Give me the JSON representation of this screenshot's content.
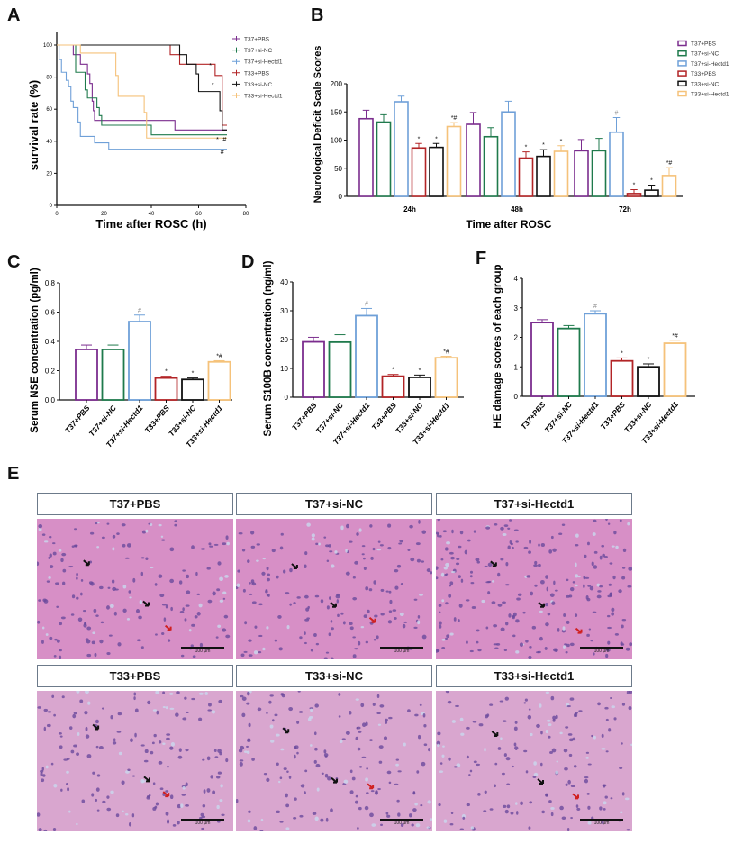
{
  "panel_labels": {
    "a": "A",
    "b": "B",
    "c": "C",
    "d": "D",
    "e": "E",
    "f": "F"
  },
  "groups": [
    "T37+PBS",
    "T37+si-NC",
    "T37+si-Hectd1",
    "T33+PBS",
    "T33+si-NC",
    "T33+si-Hectd1"
  ],
  "colors": [
    "#7b2d8e",
    "#1f7a4c",
    "#6fa0d8",
    "#b22426",
    "#111111",
    "#f5c27a"
  ],
  "chart_data": [
    {
      "id": "A",
      "type": "line",
      "step": true,
      "xlabel": "Time after ROSC (h)",
      "ylabel": "survival rate (%)",
      "xlim": [
        0,
        80
      ],
      "ylim": [
        0,
        100
      ],
      "xticks": [
        0,
        20,
        40,
        60,
        80
      ],
      "yticks": [
        0,
        20,
        40,
        60,
        80,
        100
      ],
      "legend": "top-right",
      "series": [
        {
          "name": "T37+PBS",
          "points": [
            [
              0,
              100
            ],
            [
              7,
              94
            ],
            [
              10,
              88
            ],
            [
              13,
              82
            ],
            [
              14,
              76
            ],
            [
              15,
              65
            ],
            [
              15.5,
              59
            ],
            [
              16,
              53
            ],
            [
              50,
              47
            ],
            [
              72,
              47
            ]
          ]
        },
        {
          "name": "T37+si-NC",
          "points": [
            [
              0,
              100
            ],
            [
              8,
              83
            ],
            [
              12,
              72
            ],
            [
              13,
              67
            ],
            [
              17,
              61
            ],
            [
              18,
              56
            ],
            [
              19,
              50
            ],
            [
              40,
              44
            ],
            [
              72,
              44
            ]
          ]
        },
        {
          "name": "T37+si-Hectd1",
          "points": [
            [
              0,
              100
            ],
            [
              1,
              91
            ],
            [
              2,
              83
            ],
            [
              4,
              78
            ],
            [
              5,
              74
            ],
            [
              6,
              65
            ],
            [
              7,
              61
            ],
            [
              9,
              52
            ],
            [
              10,
              43
            ],
            [
              16,
              39
            ],
            [
              22,
              35
            ],
            [
              72,
              35
            ]
          ]
        },
        {
          "name": "T33+PBS",
          "points": [
            [
              0,
              100
            ],
            [
              48,
              94
            ],
            [
              52,
              88
            ],
            [
              67,
              81
            ],
            [
              70,
              50
            ],
            [
              72,
              50
            ]
          ]
        },
        {
          "name": "T33+si-NC",
          "points": [
            [
              0,
              100
            ],
            [
              52,
              94
            ],
            [
              55,
              88
            ],
            [
              59,
              82
            ],
            [
              60,
              71
            ],
            [
              69,
              59
            ],
            [
              70,
              47
            ],
            [
              72,
              47
            ]
          ]
        },
        {
          "name": "T33+si-Hectd1",
          "points": [
            [
              0,
              100
            ],
            [
              10,
              95
            ],
            [
              25,
              81
            ],
            [
              26,
              68
            ],
            [
              37,
              58
            ],
            [
              38,
              42
            ],
            [
              72,
              42
            ]
          ]
        }
      ],
      "annotations": [
        {
          "x": 65,
          "y": 86,
          "text": "*"
        },
        {
          "x": 66,
          "y": 74,
          "text": "*"
        },
        {
          "x": 68,
          "y": 40,
          "text": "*"
        },
        {
          "x": 71,
          "y": 40,
          "text": "#"
        },
        {
          "x": 70,
          "y": 32,
          "text": "#"
        }
      ]
    },
    {
      "id": "B",
      "type": "bar",
      "xlabel": "Time after ROSC",
      "ylabel": "Neurological Deficit Scale Scores",
      "categories": [
        "24h",
        "48h",
        "72h"
      ],
      "ylim": [
        0,
        200
      ],
      "yticks": [
        0,
        50,
        100,
        150,
        200
      ],
      "legend": "top-right",
      "series": [
        {
          "name": "T37+PBS",
          "values": [
            138,
            128,
            81
          ],
          "errors": [
            15,
            21,
            20
          ],
          "marks": [
            "",
            "",
            ""
          ]
        },
        {
          "name": "T37+si-NC",
          "values": [
            132,
            106,
            81
          ],
          "errors": [
            13,
            16,
            22
          ],
          "marks": [
            "",
            "",
            ""
          ]
        },
        {
          "name": "T37+si-Hectd1",
          "values": [
            168,
            150,
            114
          ],
          "errors": [
            10,
            19,
            26
          ],
          "marks": [
            "",
            "",
            "#"
          ]
        },
        {
          "name": "T33+PBS",
          "values": [
            86,
            68,
            5
          ],
          "errors": [
            8,
            11,
            7
          ],
          "marks": [
            "*",
            "*",
            "*"
          ]
        },
        {
          "name": "T33+si-NC",
          "values": [
            87,
            71,
            11
          ],
          "errors": [
            7,
            12,
            9
          ],
          "marks": [
            "*",
            "*",
            "*"
          ]
        },
        {
          "name": "T33+si-Hectd1",
          "values": [
            124,
            80,
            37
          ],
          "errors": [
            7,
            10,
            14
          ],
          "marks": [
            "*#",
            "*",
            "*#"
          ]
        }
      ]
    },
    {
      "id": "C",
      "type": "bar",
      "ylabel": "Serum NSE concentration (pg/ml)",
      "ylim": [
        0,
        0.8
      ],
      "yticks": [
        "0.0",
        "0.2",
        "0.4",
        "0.6",
        "0.8"
      ],
      "categories": [
        "T37+PBS",
        "T37+si-NC",
        "T37+si-Hectd1",
        "T33+PBS",
        "T33+si-NC",
        "T33+si-Hectd1"
      ],
      "values": [
        0.345,
        0.345,
        0.535,
        0.15,
        0.14,
        0.26
      ],
      "errors": [
        0.03,
        0.03,
        0.045,
        0.012,
        0.01,
        0.008
      ],
      "marks": [
        "",
        "",
        "#",
        "*",
        "*",
        "*#"
      ]
    },
    {
      "id": "D",
      "type": "bar",
      "ylabel": "Serum S100B concentration (ng/ml)",
      "ylim": [
        0,
        40
      ],
      "yticks": [
        "0",
        "10",
        "20",
        "30",
        "40"
      ],
      "categories": [
        "T37+PBS",
        "T37+si-NC",
        "T37+si-Hectd1",
        "T33+PBS",
        "T33+si-NC",
        "T33+si-Hectd1"
      ],
      "values": [
        19.2,
        19.1,
        28.3,
        7.3,
        6.9,
        13.7
      ],
      "errors": [
        1.6,
        2.6,
        2.5,
        0.6,
        0.8,
        0.5
      ],
      "marks": [
        "",
        "",
        "#",
        "*",
        "*",
        "*#"
      ]
    },
    {
      "id": "F",
      "type": "bar",
      "ylabel": "HE damage scores of each group",
      "ylim": [
        0,
        4
      ],
      "yticks": [
        "0",
        "1",
        "2",
        "3",
        "4"
      ],
      "categories": [
        "T37+PBS",
        "T37+si-NC",
        "T37+si-Hectd1",
        "T33+PBS",
        "T33+si-NC",
        "T33+si-Hectd1"
      ],
      "values": [
        2.5,
        2.3,
        2.8,
        1.2,
        1.0,
        1.8
      ],
      "errors": [
        0.1,
        0.1,
        0.1,
        0.1,
        0.1,
        0.1
      ],
      "marks": [
        "",
        "",
        "#",
        "*",
        "*",
        "*#"
      ]
    }
  ],
  "histology": {
    "scale_label": "100 μm",
    "panels": [
      {
        "title": "T37+PBS"
      },
      {
        "title": "T37+si-NC"
      },
      {
        "title": "T37+si-Hectd1"
      },
      {
        "title": "T33+PBS"
      },
      {
        "title": "T33+si-NC"
      },
      {
        "title": "T33+si-Hectd1"
      }
    ]
  }
}
